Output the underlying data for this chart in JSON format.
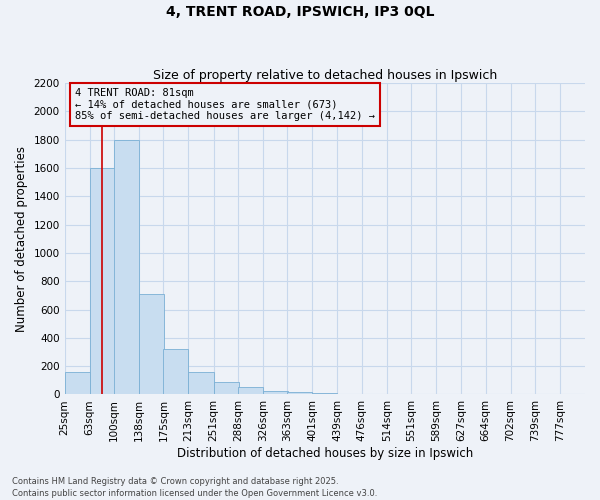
{
  "title": "4, TRENT ROAD, IPSWICH, IP3 0QL",
  "subtitle": "Size of property relative to detached houses in Ipswich",
  "xlabel": "Distribution of detached houses by size in Ipswich",
  "ylabel": "Number of detached properties",
  "bar_color": "#c8ddf0",
  "bar_edge_color": "#7aafd4",
  "grid_color": "#c8d8ec",
  "background_color": "#eef2f8",
  "property_line_color": "#cc0000",
  "annotation_box_color": "#cc0000",
  "annotation_text": "4 TRENT ROAD: 81sqm\n← 14% of detached houses are smaller (673)\n85% of semi-detached houses are larger (4,142) →",
  "property_value": 81,
  "categories": [
    "25sqm",
    "63sqm",
    "100sqm",
    "138sqm",
    "175sqm",
    "213sqm",
    "251sqm",
    "288sqm",
    "326sqm",
    "363sqm",
    "401sqm",
    "439sqm",
    "476sqm",
    "514sqm",
    "551sqm",
    "589sqm",
    "627sqm",
    "664sqm",
    "702sqm",
    "739sqm",
    "777sqm"
  ],
  "bin_edges": [
    25,
    63,
    100,
    138,
    175,
    213,
    251,
    288,
    326,
    363,
    401,
    439,
    476,
    514,
    551,
    589,
    627,
    664,
    702,
    739,
    777
  ],
  "bin_width": 38,
  "values": [
    160,
    1600,
    1800,
    710,
    320,
    160,
    90,
    55,
    25,
    15,
    10,
    5,
    3,
    2,
    1,
    1,
    0,
    0,
    0,
    0
  ],
  "ylim": [
    0,
    2200
  ],
  "yticks": [
    0,
    200,
    400,
    600,
    800,
    1000,
    1200,
    1400,
    1600,
    1800,
    2000,
    2200
  ],
  "footnote1": "Contains HM Land Registry data © Crown copyright and database right 2025.",
  "footnote2": "Contains public sector information licensed under the Open Government Licence v3.0.",
  "title_fontsize": 10,
  "subtitle_fontsize": 9,
  "axis_label_fontsize": 8.5,
  "tick_fontsize": 7.5,
  "annotation_fontsize": 7.5,
  "footnote_fontsize": 6
}
